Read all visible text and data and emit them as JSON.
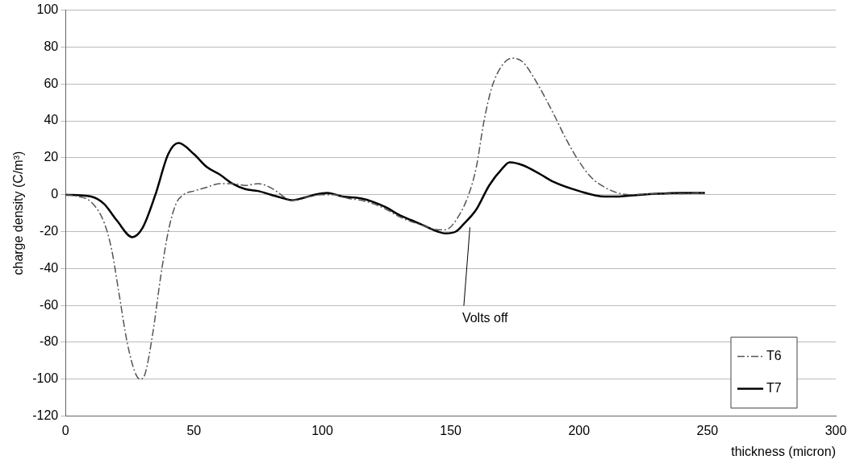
{
  "chart_data": {
    "type": "line",
    "xlabel": "thickness (micron)",
    "ylabel": "charge density (C/m³)",
    "xlim": [
      0,
      300
    ],
    "xticks": [
      0,
      50,
      100,
      150,
      200,
      250,
      300
    ],
    "ylim": [
      -120,
      100
    ],
    "yticks": [
      -120,
      -100,
      -80,
      -60,
      -40,
      -20,
      0,
      20,
      40,
      60,
      80,
      100
    ],
    "grid": "y",
    "legend": "bottom right",
    "marker": "none",
    "annotations": [
      "Volts off"
    ],
    "series": [
      {
        "name": "T6",
        "color": "#555555",
        "line_style": "dashed",
        "x": [
          0,
          5,
          10,
          15,
          18,
          21,
          24,
          27,
          29,
          31,
          34,
          37,
          40,
          43,
          46,
          50,
          55,
          60,
          65,
          70,
          75,
          78,
          82,
          86,
          90,
          95,
          100,
          105,
          110,
          115,
          120,
          125,
          130,
          140,
          145,
          148,
          152,
          157,
          160,
          163,
          166,
          170,
          174,
          178,
          183,
          190,
          195,
          200,
          205,
          210,
          215,
          220,
          230,
          240,
          249
        ],
        "values": [
          0,
          -1,
          -4,
          -15,
          -30,
          -55,
          -80,
          -96,
          -100,
          -97,
          -75,
          -45,
          -20,
          -5,
          0,
          2,
          4,
          6,
          6,
          5,
          6,
          5,
          2,
          -2,
          -3,
          -1,
          0,
          0,
          -2,
          -3,
          -5,
          -8,
          -12,
          -17,
          -19,
          -19,
          -14,
          0,
          15,
          40,
          58,
          70,
          74,
          72,
          62,
          44,
          30,
          18,
          9,
          4,
          1,
          0,
          0.5,
          0.5,
          1
        ]
      },
      {
        "name": "T7",
        "color": "#000000",
        "line_style": "solid",
        "x": [
          0,
          10,
          15,
          20,
          26,
          30,
          35,
          40,
          44,
          50,
          55,
          60,
          65,
          70,
          75,
          80,
          85,
          88,
          92,
          97,
          102,
          108,
          115,
          120,
          125,
          130,
          135,
          140,
          145,
          148,
          152,
          155,
          160,
          165,
          170,
          173,
          178,
          185,
          190,
          200,
          210,
          215,
          220,
          230,
          240,
          249
        ],
        "values": [
          0,
          -1,
          -5,
          -14,
          -23,
          -18,
          0,
          22,
          28,
          22,
          15,
          11,
          6,
          3,
          2,
          0,
          -2,
          -3,
          -2,
          0,
          1,
          -1,
          -2,
          -4,
          -7,
          -11,
          -14,
          -17,
          -20,
          -21,
          -20,
          -16,
          -8,
          5,
          14,
          17.5,
          16,
          11,
          7,
          2,
          -1,
          -1,
          -0.5,
          0.5,
          1,
          1
        ]
      }
    ]
  }
}
